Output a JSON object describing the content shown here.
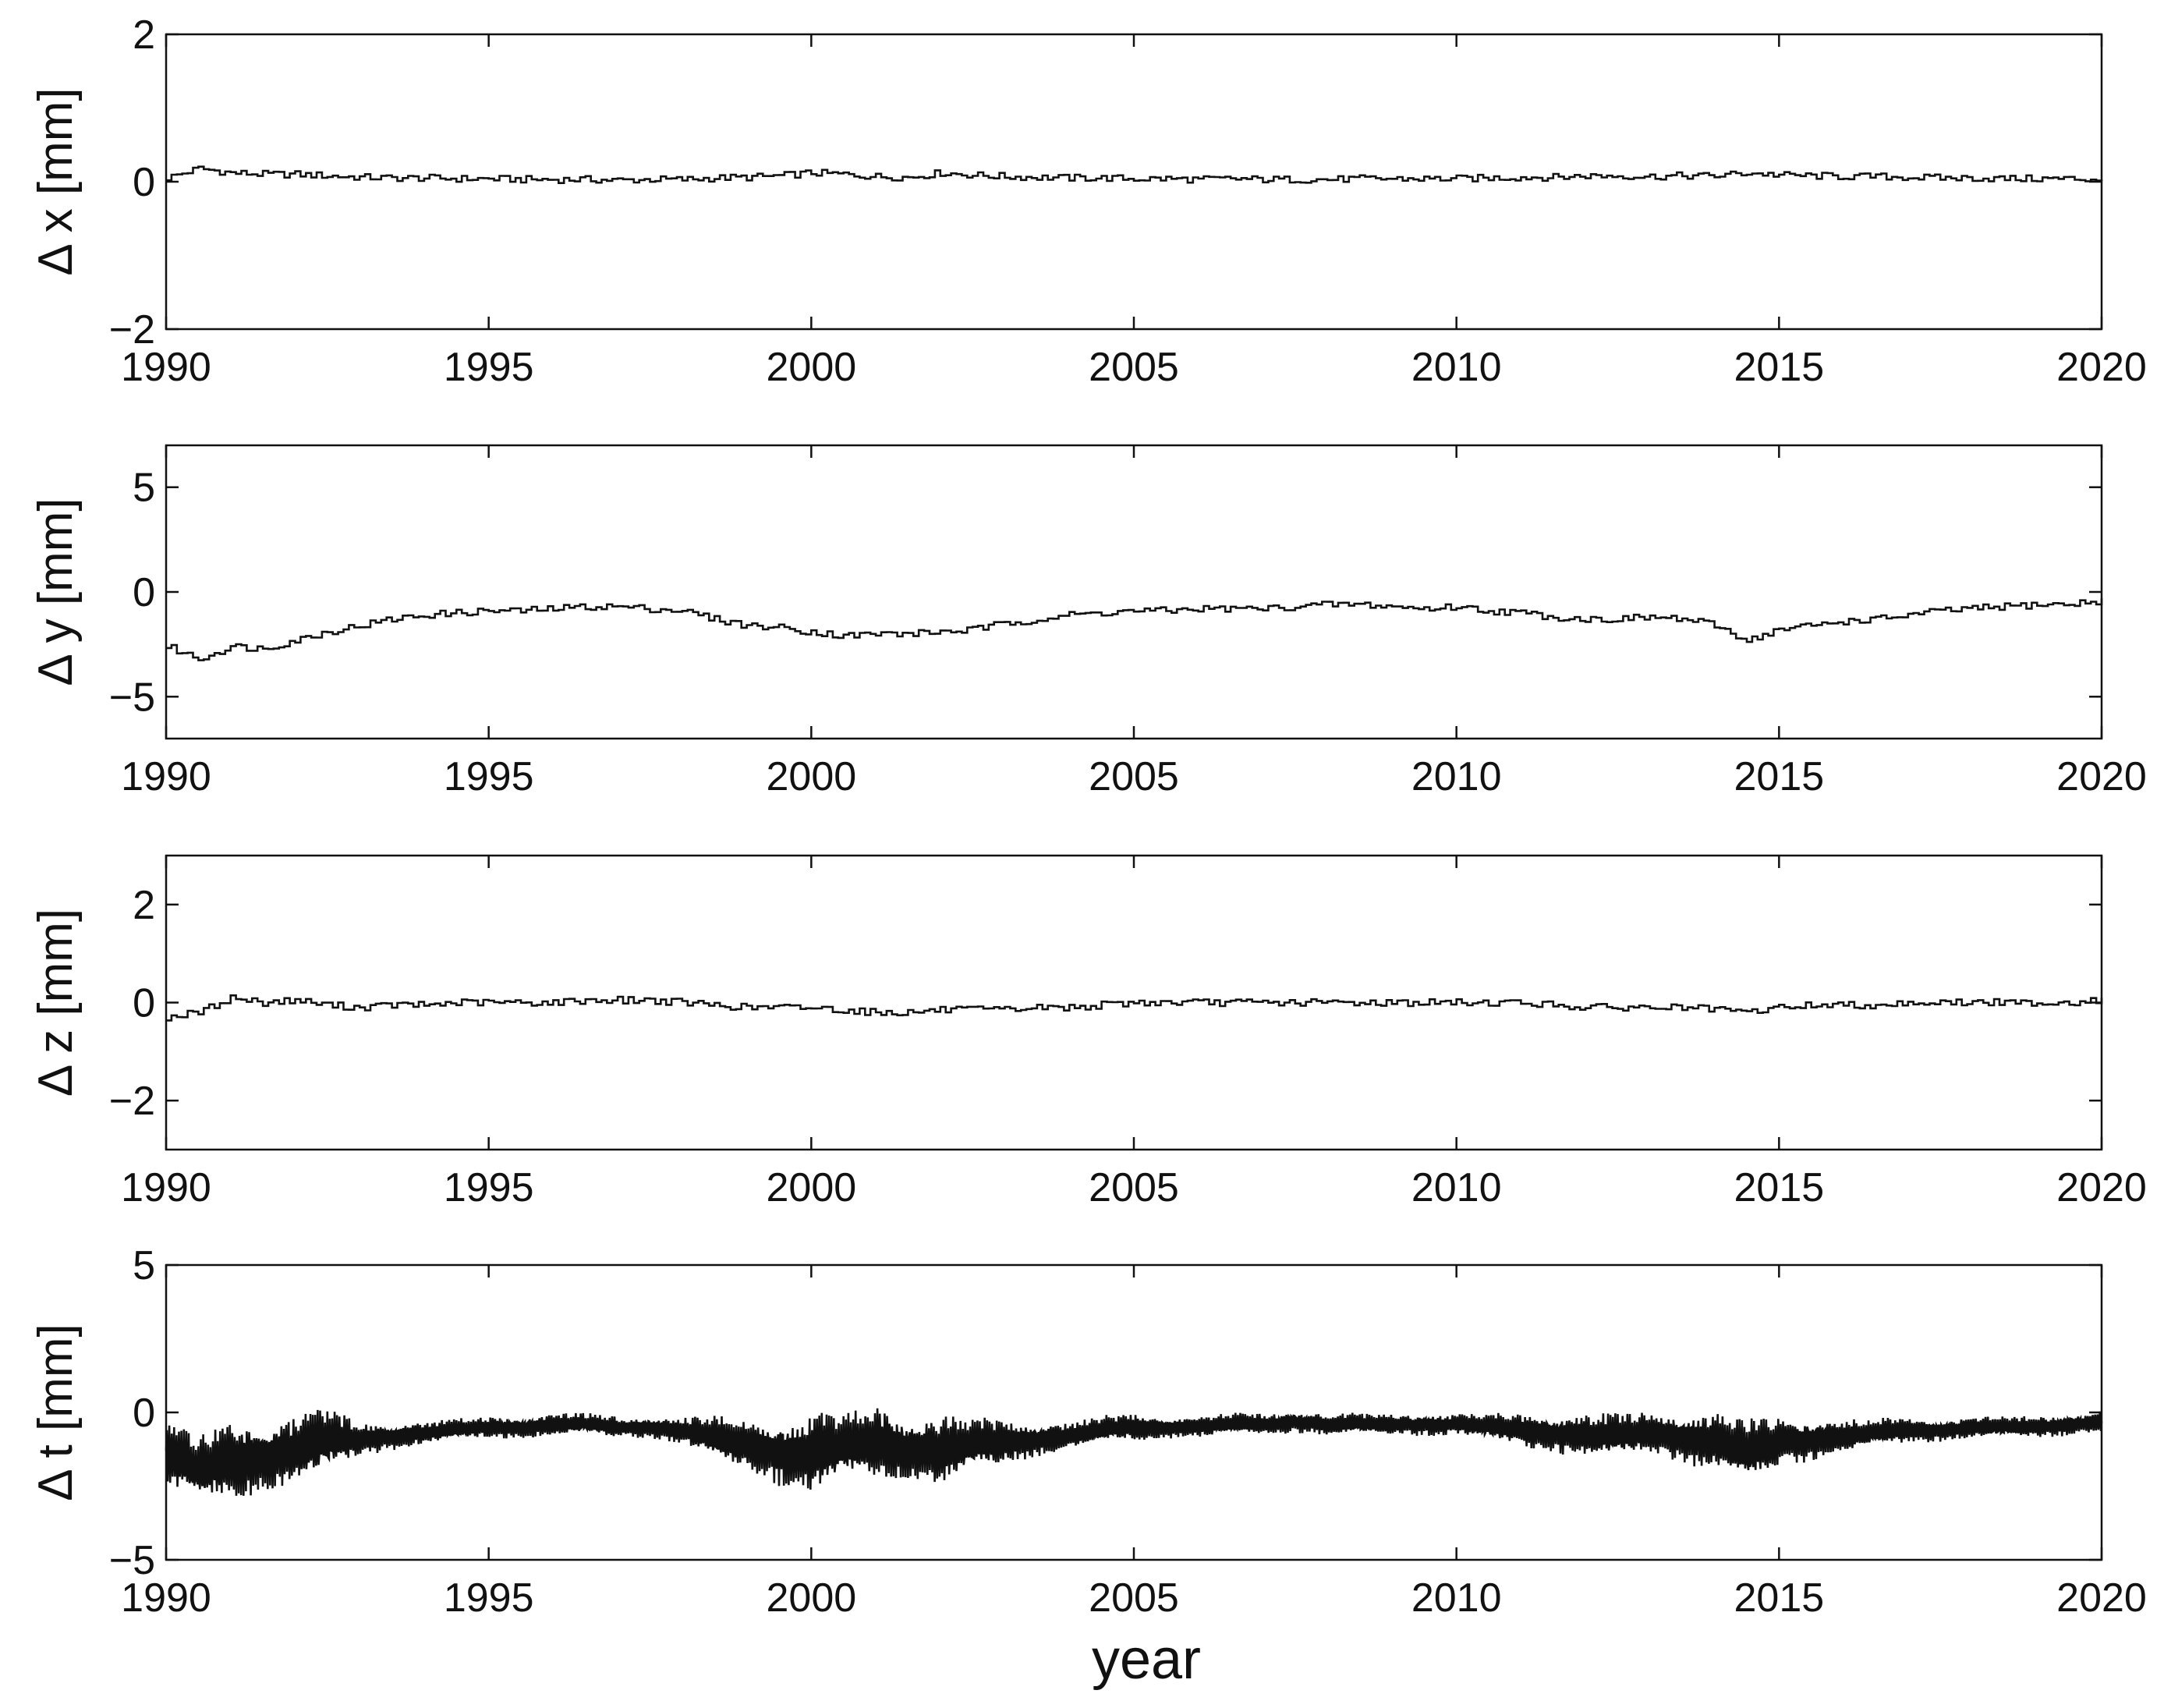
{
  "chart_data": [
    {
      "type": "line",
      "step": true,
      "ylabel": "Δ x [mm]",
      "xlabel": "",
      "xlim": [
        1990,
        2020
      ],
      "ylim": [
        -2,
        2
      ],
      "xticks": [
        1990,
        1995,
        2000,
        2005,
        2010,
        2015,
        2020
      ],
      "yticks": [
        2,
        0,
        -2
      ],
      "series": [
        {
          "x": [
            1990.0,
            1990.5,
            1991.0,
            1991.5,
            1992.0,
            1992.5,
            1993.0,
            1993.5,
            1994.0,
            1994.5,
            1995.0,
            1995.5,
            1996.0,
            1996.5,
            1997.0,
            1997.5,
            1998.0,
            1998.5,
            1999.0,
            1999.5,
            2000.0,
            2000.5,
            2001.0,
            2001.5,
            2002.0,
            2002.5,
            2003.0,
            2003.5,
            2004.0,
            2004.5,
            2005.0,
            2005.5,
            2006.0,
            2006.5,
            2007.0,
            2007.5,
            2008.0,
            2008.5,
            2009.0,
            2009.5,
            2010.0,
            2010.5,
            2011.0,
            2011.5,
            2012.0,
            2012.5,
            2013.0,
            2013.5,
            2014.0,
            2014.5,
            2015.0,
            2015.5,
            2016.0,
            2016.5,
            2017.0,
            2017.5,
            2018.0,
            2018.5,
            2019.0,
            2019.5,
            2020.0
          ],
          "y": [
            0.05,
            0.18,
            0.12,
            0.1,
            0.1,
            0.08,
            0.06,
            0.05,
            0.05,
            0.04,
            0.04,
            0.03,
            0.03,
            0.03,
            0.02,
            0.03,
            0.03,
            0.05,
            0.06,
            0.08,
            0.12,
            0.1,
            0.07,
            0.06,
            0.12,
            0.09,
            0.07,
            0.06,
            0.05,
            0.05,
            0.04,
            0.04,
            0.03,
            0.04,
            0.03,
            0.03,
            0.03,
            0.04,
            0.04,
            0.04,
            0.04,
            0.05,
            0.06,
            0.06,
            0.08,
            0.08,
            0.07,
            0.08,
            0.08,
            0.12,
            0.09,
            0.08,
            0.07,
            0.07,
            0.06,
            0.05,
            0.05,
            0.04,
            0.04,
            0.04,
            0.03
          ]
        }
      ]
    },
    {
      "type": "line",
      "step": true,
      "ylabel": "Δ y [mm]",
      "xlabel": "",
      "xlim": [
        1990,
        2020
      ],
      "ylim": [
        -7,
        7
      ],
      "xticks": [
        1990,
        1995,
        2000,
        2005,
        2010,
        2015,
        2020
      ],
      "yticks": [
        5,
        0,
        -5
      ],
      "series": [
        {
          "x": [
            1990.0,
            1990.5,
            1991.0,
            1991.5,
            1992.0,
            1992.5,
            1993.0,
            1993.5,
            1994.0,
            1994.5,
            1995.0,
            1995.5,
            1996.0,
            1996.5,
            1997.0,
            1997.5,
            1998.0,
            1998.5,
            1999.0,
            1999.5,
            2000.0,
            2000.5,
            2001.0,
            2001.5,
            2002.0,
            2002.5,
            2003.0,
            2003.5,
            2004.0,
            2004.5,
            2005.0,
            2005.5,
            2006.0,
            2006.5,
            2007.0,
            2007.5,
            2008.0,
            2008.5,
            2009.0,
            2009.5,
            2010.0,
            2010.5,
            2011.0,
            2011.5,
            2012.0,
            2012.5,
            2013.0,
            2013.5,
            2014.0,
            2014.5,
            2015.0,
            2015.5,
            2016.0,
            2016.5,
            2017.0,
            2017.5,
            2018.0,
            2018.5,
            2019.0,
            2019.5,
            2020.0
          ],
          "y": [
            -2.6,
            -3.2,
            -2.6,
            -2.7,
            -2.3,
            -1.9,
            -1.6,
            -1.3,
            -1.1,
            -1.0,
            -0.9,
            -0.9,
            -0.8,
            -0.7,
            -0.7,
            -0.8,
            -0.9,
            -1.3,
            -1.6,
            -1.7,
            -1.9,
            -2.1,
            -2.0,
            -2.0,
            -1.9,
            -1.8,
            -1.5,
            -1.3,
            -1.1,
            -1.0,
            -0.9,
            -0.9,
            -0.8,
            -0.8,
            -0.8,
            -0.7,
            -0.6,
            -0.6,
            -0.7,
            -0.8,
            -0.7,
            -0.9,
            -1.0,
            -1.2,
            -1.3,
            -1.3,
            -1.2,
            -1.3,
            -1.6,
            -2.3,
            -1.8,
            -1.6,
            -1.4,
            -1.3,
            -1.1,
            -0.9,
            -0.8,
            -0.7,
            -0.6,
            -0.6,
            -0.4
          ]
        }
      ]
    },
    {
      "type": "line",
      "step": true,
      "ylabel": "Δ z [mm]",
      "xlabel": "",
      "xlim": [
        1990,
        2020
      ],
      "ylim": [
        -3,
        3
      ],
      "xticks": [
        1990,
        1995,
        2000,
        2005,
        2010,
        2015,
        2020
      ],
      "yticks": [
        2,
        0,
        -2
      ],
      "series": [
        {
          "x": [
            1990.0,
            1990.5,
            1991.0,
            1991.5,
            1992.0,
            1992.5,
            1993.0,
            1993.5,
            1994.0,
            1994.5,
            1995.0,
            1995.5,
            1996.0,
            1996.5,
            1997.0,
            1997.5,
            1998.0,
            1998.5,
            1999.0,
            1999.5,
            2000.0,
            2000.5,
            2001.0,
            2001.5,
            2002.0,
            2002.5,
            2003.0,
            2003.5,
            2004.0,
            2004.5,
            2005.0,
            2005.5,
            2006.0,
            2006.5,
            2007.0,
            2007.5,
            2008.0,
            2008.5,
            2009.0,
            2009.5,
            2010.0,
            2010.5,
            2011.0,
            2011.5,
            2012.0,
            2012.5,
            2013.0,
            2013.5,
            2014.0,
            2014.5,
            2015.0,
            2015.5,
            2016.0,
            2016.5,
            2017.0,
            2017.5,
            2018.0,
            2018.5,
            2019.0,
            2019.5,
            2020.0
          ],
          "y": [
            -0.3,
            -0.2,
            0.1,
            0.0,
            0.05,
            -0.05,
            -0.1,
            -0.05,
            -0.05,
            0.0,
            0.0,
            0.0,
            0.0,
            0.05,
            0.05,
            0.05,
            0.0,
            -0.05,
            -0.1,
            -0.1,
            -0.1,
            -0.15,
            -0.2,
            -0.2,
            -0.15,
            -0.15,
            -0.15,
            -0.1,
            -0.1,
            -0.05,
            0.0,
            0.0,
            0.0,
            0.0,
            0.0,
            0.0,
            0.0,
            0.0,
            0.0,
            0.0,
            0.0,
            0.0,
            0.0,
            -0.05,
            -0.1,
            -0.1,
            -0.1,
            -0.1,
            -0.15,
            -0.2,
            -0.1,
            -0.05,
            -0.05,
            -0.05,
            0.0,
            0.0,
            0.0,
            0.0,
            0.0,
            0.0,
            0.05
          ]
        }
      ]
    },
    {
      "type": "line",
      "step": false,
      "ylabel": "Δ t [mm]",
      "xlabel": "year",
      "xlim": [
        1990,
        2020
      ],
      "ylim": [
        -5,
        5
      ],
      "xticks": [
        1990,
        1995,
        2000,
        2005,
        2010,
        2015,
        2020
      ],
      "yticks": [
        5,
        0,
        -5
      ],
      "series": [
        {
          "x": [
            1990.0,
            1990.5,
            1991.0,
            1991.5,
            1992.0,
            1992.5,
            1993.0,
            1993.5,
            1994.0,
            1994.5,
            1995.0,
            1995.5,
            1996.0,
            1996.5,
            1997.0,
            1997.5,
            1998.0,
            1998.5,
            1999.0,
            1999.5,
            2000.0,
            2000.5,
            2001.0,
            2001.5,
            2002.0,
            2002.5,
            2003.0,
            2003.5,
            2004.0,
            2004.5,
            2005.0,
            2005.5,
            2006.0,
            2006.5,
            2007.0,
            2007.5,
            2008.0,
            2008.5,
            2009.0,
            2009.5,
            2010.0,
            2010.5,
            2011.0,
            2011.5,
            2012.0,
            2012.5,
            2013.0,
            2013.5,
            2014.0,
            2014.5,
            2015.0,
            2015.5,
            2016.0,
            2016.5,
            2017.0,
            2017.5,
            2018.0,
            2018.5,
            2019.0,
            2019.5,
            2020.0
          ],
          "y": [
            -1.3,
            -2.0,
            -1.6,
            -1.5,
            -1.3,
            -1.0,
            -0.9,
            -0.8,
            -0.7,
            -0.6,
            -0.5,
            -0.5,
            -0.4,
            -0.4,
            -0.5,
            -0.5,
            -0.6,
            -0.9,
            -1.1,
            -1.3,
            -1.4,
            -1.2,
            -1.0,
            -1.2,
            -1.3,
            -1.1,
            -1.0,
            -0.9,
            -0.8,
            -0.6,
            -0.5,
            -0.5,
            -0.5,
            -0.4,
            -0.4,
            -0.3,
            -0.4,
            -0.4,
            -0.4,
            -0.4,
            -0.4,
            -0.5,
            -0.6,
            -0.7,
            -0.8,
            -0.8,
            -0.7,
            -0.8,
            -1.0,
            -1.4,
            -1.0,
            -0.9,
            -0.8,
            -0.7,
            -0.6,
            -0.6,
            -0.5,
            -0.5,
            -0.5,
            -0.4,
            -0.3
          ],
          "amplitude": [
            1.4,
            1.2,
            1.5,
            1.2,
            1.3,
            1.2,
            0.6,
            0.5,
            0.4,
            0.4,
            0.4,
            0.4,
            0.4,
            0.4,
            0.4,
            0.4,
            0.5,
            0.8,
            1.0,
            1.2,
            1.5,
            1.3,
            1.4,
            1.2,
            1.3,
            1.0,
            0.8,
            0.6,
            0.5,
            0.5,
            0.5,
            0.4,
            0.4,
            0.4,
            0.4,
            0.4,
            0.4,
            0.4,
            0.4,
            0.4,
            0.4,
            0.5,
            0.6,
            0.7,
            0.8,
            0.8,
            0.8,
            0.9,
            1.1,
            1.2,
            0.9,
            0.8,
            0.6,
            0.5,
            0.5,
            0.4,
            0.4,
            0.4,
            0.4,
            0.4,
            0.4
          ]
        }
      ]
    }
  ]
}
